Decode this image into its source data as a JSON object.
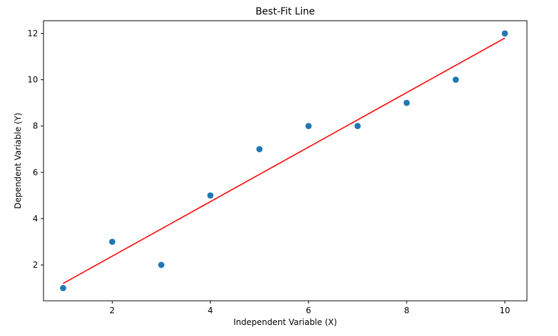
{
  "chart_data": {
    "type": "scatter",
    "title": "Best-Fit Line",
    "xlabel": "Independent Variable (X)",
    "ylabel": "Dependent Variable (Y)",
    "xlim": [
      0.6,
      10.45
    ],
    "ylim": [
      0.45,
      12.55
    ],
    "x_ticks": [
      2,
      4,
      6,
      8,
      10
    ],
    "y_ticks": [
      2,
      4,
      6,
      8,
      10,
      12
    ],
    "grid": false,
    "series": [
      {
        "type": "scatter",
        "color": "#1f77b4",
        "x": [
          1,
          2,
          3,
          4,
          5,
          6,
          7,
          8,
          9,
          10
        ],
        "y": [
          1,
          3,
          2,
          5,
          7,
          8,
          8,
          9,
          10,
          12
        ]
      },
      {
        "type": "line",
        "color": "#ff0000",
        "x": [
          1,
          10
        ],
        "y": [
          1.2,
          11.8
        ]
      }
    ]
  }
}
